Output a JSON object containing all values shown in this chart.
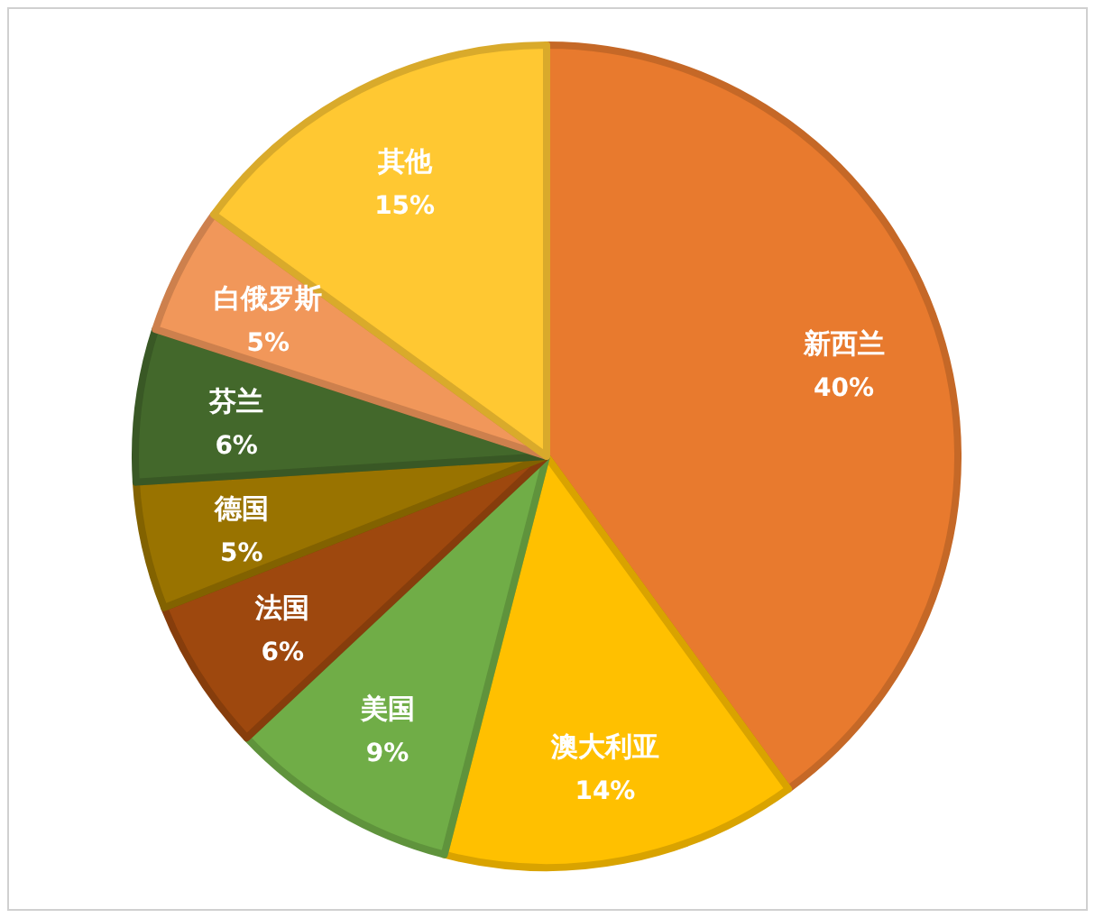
{
  "chart_data": {
    "type": "pie",
    "categories": [
      "新西兰",
      "澳大利亚",
      "美国",
      "法国",
      "德国",
      "芬兰",
      "白俄罗斯",
      "其他"
    ],
    "values": [
      40,
      14,
      9,
      6,
      5,
      6,
      5,
      15
    ],
    "value_labels": [
      "40%",
      "14%",
      "9%",
      "6%",
      "5%",
      "6%",
      "5%",
      "15%"
    ],
    "colors": [
      "#e87a2e",
      "#ffc000",
      "#70ad47",
      "#9e480e",
      "#997300",
      "#43682b",
      "#f1975a",
      "#ffc832"
    ],
    "legend": false
  }
}
